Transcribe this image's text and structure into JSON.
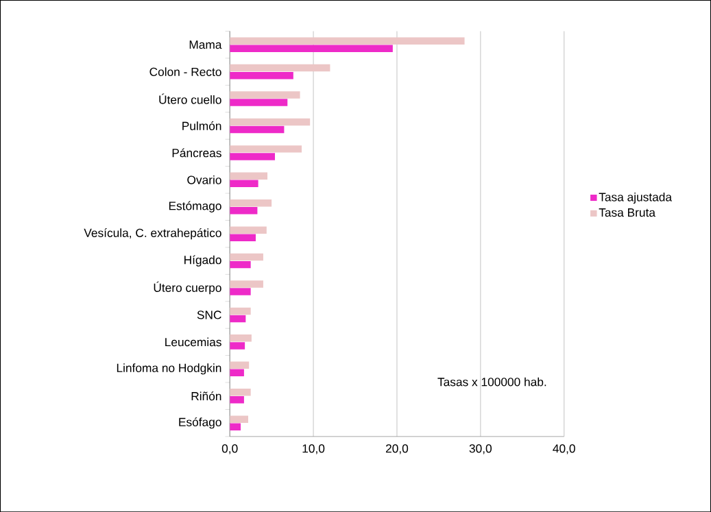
{
  "chart_data": {
    "type": "bar",
    "orientation": "horizontal",
    "categories": [
      "Mama",
      "Colon - Recto",
      "Útero cuello",
      "Pulmón",
      "Páncreas",
      "Ovario",
      "Estómago",
      "Vesícula, C. extrahepático",
      "Hígado",
      "Útero cuerpo",
      "SNC",
      "Leucemias",
      "Linfoma no Hodgkin",
      "Riñón",
      "Esófago"
    ],
    "series": [
      {
        "name": "Tasa ajustada",
        "color": "#ee2ac8",
        "values": [
          19.5,
          7.6,
          6.9,
          6.5,
          5.4,
          3.4,
          3.3,
          3.1,
          2.5,
          2.5,
          1.9,
          1.8,
          1.7,
          1.7,
          1.3
        ]
      },
      {
        "name": "Tasa Bruta",
        "color": "#ecc6c6",
        "values": [
          28.1,
          12.0,
          8.4,
          9.6,
          8.6,
          4.5,
          5.0,
          4.4,
          4.0,
          4.0,
          2.5,
          2.6,
          2.3,
          2.5,
          2.2
        ]
      }
    ],
    "xlim": [
      0,
      40
    ],
    "xticks": [
      {
        "value": 0,
        "label": "0,0"
      },
      {
        "value": 10,
        "label": "10,0"
      },
      {
        "value": 20,
        "label": "20,0"
      },
      {
        "value": 30,
        "label": "30,0"
      },
      {
        "value": 40,
        "label": "40,0"
      }
    ],
    "grid": "x",
    "legend": "right",
    "annotations": [
      "Tasas x 100000 hab."
    ]
  }
}
